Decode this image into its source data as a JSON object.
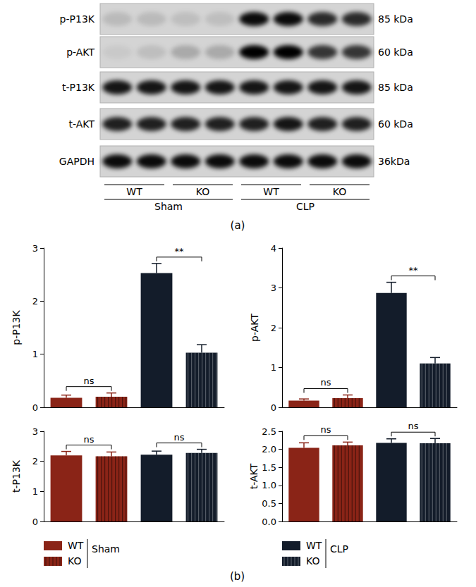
{
  "panel_labels": [
    "(a)",
    "(b)"
  ],
  "blot": {
    "rows": [
      {
        "label": "p-P13K",
        "size": "85 kDa",
        "intensity": [
          0.12,
          0.12,
          0.1,
          0.1,
          0.95,
          0.95,
          0.8,
          0.8
        ]
      },
      {
        "label": "p-AKT",
        "size": "60 kDa",
        "intensity": [
          0.05,
          0.1,
          0.2,
          0.2,
          1,
          1,
          0.75,
          0.75
        ]
      },
      {
        "label": "t-P13K",
        "size": "85 kDa",
        "intensity": [
          0.9,
          0.9,
          0.9,
          0.9,
          0.9,
          0.9,
          0.9,
          0.9
        ]
      },
      {
        "label": "t-AKT",
        "size": "60 kDa",
        "intensity": [
          0.85,
          0.85,
          0.85,
          0.85,
          0.85,
          0.9,
          0.85,
          0.85
        ]
      },
      {
        "label": "GAPDH",
        "size": "36kDa",
        "intensity": [
          0.95,
          0.95,
          0.95,
          0.95,
          0.95,
          0.95,
          0.95,
          0.95
        ]
      }
    ],
    "genotypes": [
      "WT",
      "KO",
      "WT",
      "KO"
    ],
    "groups": [
      "Sham",
      "CLP"
    ]
  },
  "chart_data": [
    {
      "type": "bar",
      "ylabel": "p-P13K",
      "categories": [
        null,
        null,
        null,
        null
      ],
      "series": [
        {
          "name": "WT",
          "marker": "solid",
          "colors": [
            "#8a2417",
            null,
            "#131c2a",
            null
          ],
          "values": [
            0.18,
            null,
            2.53,
            null
          ],
          "errors": [
            0.05,
            null,
            0.18,
            null
          ]
        },
        {
          "name": "KO",
          "marker": "striped",
          "colors": [
            null,
            "#8a2417",
            null,
            "#131c2a"
          ],
          "values": [
            null,
            0.2,
            null,
            1.03
          ],
          "errors": [
            null,
            0.07,
            null,
            0.15
          ]
        }
      ],
      "ylim": [
        0,
        3
      ],
      "yticks": [
        0,
        1,
        2,
        3
      ],
      "grid": false,
      "annotations": [
        {
          "text": "ns",
          "from": 0,
          "to": 1
        },
        {
          "text": "**",
          "from": 2,
          "to": 3
        }
      ]
    },
    {
      "type": "bar",
      "ylabel": "p-AKT",
      "categories": [
        null,
        null,
        null,
        null
      ],
      "series": [
        {
          "name": "WT",
          "marker": "solid",
          "colors": [
            "#8a2417",
            null,
            "#131c2a",
            null
          ],
          "values": [
            0.17,
            null,
            2.87,
            null
          ],
          "errors": [
            0.04,
            null,
            0.27,
            null
          ]
        },
        {
          "name": "KO",
          "marker": "striped",
          "colors": [
            null,
            "#8a2417",
            null,
            "#131c2a"
          ],
          "values": [
            null,
            0.23,
            null,
            1.1
          ],
          "errors": [
            null,
            0.08,
            null,
            0.15
          ]
        }
      ],
      "ylim": [
        0,
        4
      ],
      "yticks": [
        0,
        1,
        2,
        3,
        4
      ],
      "grid": false,
      "annotations": [
        {
          "text": "ns",
          "from": 0,
          "to": 1
        },
        {
          "text": "**",
          "from": 2,
          "to": 3
        }
      ]
    },
    {
      "type": "bar",
      "ylabel": "t-P13K",
      "categories": [
        null,
        null,
        null,
        null
      ],
      "series": [
        {
          "name": "WT",
          "marker": "solid",
          "colors": [
            "#8a2417",
            null,
            "#131c2a",
            null
          ],
          "values": [
            2.2,
            null,
            2.22,
            null
          ],
          "errors": [
            0.13,
            null,
            0.12,
            null
          ]
        },
        {
          "name": "KO",
          "marker": "striped",
          "colors": [
            null,
            "#8a2417",
            null,
            "#131c2a"
          ],
          "values": [
            null,
            2.17,
            null,
            2.28
          ],
          "errors": [
            null,
            0.14,
            null,
            0.12
          ]
        }
      ],
      "ylim": [
        0,
        3
      ],
      "yticks": [
        0,
        1,
        2,
        3
      ],
      "grid": false,
      "annotations": [
        {
          "text": "ns",
          "from": 0,
          "to": 1
        },
        {
          "text": "ns",
          "from": 2,
          "to": 3
        }
      ]
    },
    {
      "type": "bar",
      "ylabel": "t-AKT",
      "categories": [
        null,
        null,
        null,
        null
      ],
      "series": [
        {
          "name": "WT",
          "marker": "solid",
          "colors": [
            "#8a2417",
            null,
            "#131c2a",
            null
          ],
          "values": [
            2.04,
            null,
            2.18,
            null
          ],
          "errors": [
            0.14,
            null,
            0.11,
            null
          ]
        },
        {
          "name": "KO",
          "marker": "striped",
          "colors": [
            null,
            "#8a2417",
            null,
            "#131c2a"
          ],
          "values": [
            null,
            2.11,
            null,
            2.17
          ],
          "errors": [
            null,
            0.09,
            null,
            0.13
          ]
        }
      ],
      "ylim": [
        0,
        2.5
      ],
      "yticks": [
        {
          "value": 0,
          "label": "0.0"
        },
        0.5,
        {
          "value": 1,
          "label": "1.0"
        },
        1.5,
        {
          "value": 2,
          "label": "2.0"
        },
        2.5
      ],
      "grid": false,
      "annotations": [
        {
          "text": "ns",
          "from": 0,
          "to": 1
        },
        {
          "text": "ns",
          "from": 2,
          "to": 3
        }
      ]
    }
  ],
  "legend_groups": [
    {
      "label": "Sham",
      "entries": [
        {
          "name": "WT",
          "color": "#8a2417",
          "marker": "solid"
        },
        {
          "name": "KO",
          "color": "#8a2417",
          "marker": "striped"
        }
      ]
    },
    {
      "label": "CLP",
      "entries": [
        {
          "name": "WT",
          "color": "#131c2a",
          "marker": "solid"
        },
        {
          "name": "KO",
          "color": "#131c2a",
          "marker": "striped"
        }
      ]
    }
  ]
}
